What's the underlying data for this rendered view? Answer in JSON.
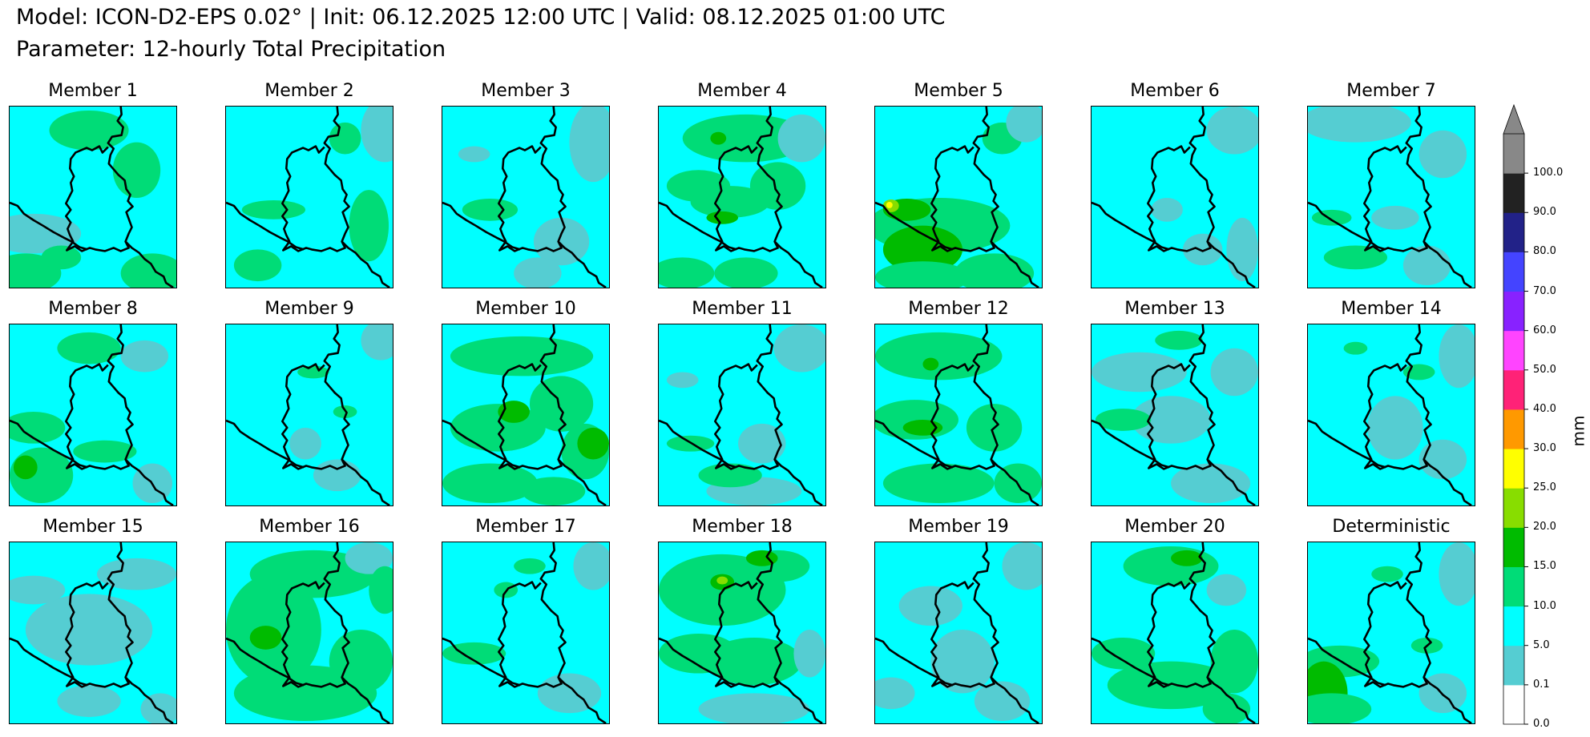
{
  "header": {
    "title_line1": "Model: ICON-D2-EPS 0.02° | Init: 06.12.2025 12:00 UTC | Valid: 08.12.2025 01:00 UTC",
    "title_line2": "Parameter: 12-hourly Total Precipitation"
  },
  "panels": [
    {
      "label": "Member 1",
      "variant": 0
    },
    {
      "label": "Member 2",
      "variant": 1
    },
    {
      "label": "Member 3",
      "variant": 2
    },
    {
      "label": "Member 4",
      "variant": 3
    },
    {
      "label": "Member 5",
      "variant": 4
    },
    {
      "label": "Member 6",
      "variant": 5
    },
    {
      "label": "Member 7",
      "variant": 6
    },
    {
      "label": "Member 8",
      "variant": 7
    },
    {
      "label": "Member 9",
      "variant": 8
    },
    {
      "label": "Member 10",
      "variant": 9
    },
    {
      "label": "Member 11",
      "variant": 10
    },
    {
      "label": "Member 12",
      "variant": 11
    },
    {
      "label": "Member 13",
      "variant": 12
    },
    {
      "label": "Member 14",
      "variant": 13
    },
    {
      "label": "Member 15",
      "variant": 14
    },
    {
      "label": "Member 16",
      "variant": 15
    },
    {
      "label": "Member 17",
      "variant": 16
    },
    {
      "label": "Member 18",
      "variant": 17
    },
    {
      "label": "Member 19",
      "variant": 18
    },
    {
      "label": "Member 20",
      "variant": 19
    },
    {
      "label": "Deterministic",
      "variant": 20
    }
  ],
  "colorbar": {
    "unit": "mm",
    "ticks": [
      "0.0",
      "0.1",
      "5.0",
      "10.0",
      "15.0",
      "20.0",
      "25.0",
      "30.0",
      "40.0",
      "50.0",
      "60.0",
      "70.0",
      "80.0",
      "90.0",
      "100.0"
    ],
    "colors": [
      "#ffffff",
      "#55cdd2",
      "#00ffff",
      "#00dc77",
      "#00bb00",
      "#88dd00",
      "#ffff00",
      "#ff9900",
      "#ff2277",
      "#ff44ff",
      "#8822ff",
      "#4444ff",
      "#222288",
      "#222222",
      "#888888"
    ],
    "extend_color": "#888888"
  },
  "palette": {
    "bg": "#00ffff",
    "grey": "#55cdd2",
    "green": "#00dc77",
    "dark_green": "#00bb00",
    "lime": "#88dd00",
    "yellow": "#ffff00",
    "border": "#000000"
  }
}
